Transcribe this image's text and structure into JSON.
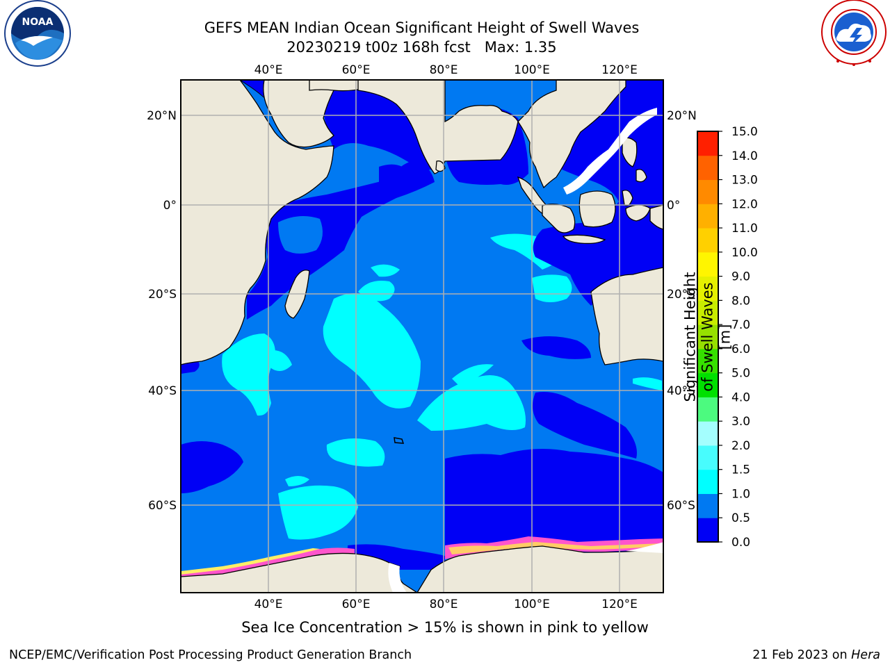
{
  "header": {
    "title_line1": "GEFS MEAN Indian Ocean Significant Height of Swell Waves",
    "title_line2": "20230219 t00z 168h fcst   Max: 1.35"
  },
  "logos": {
    "left": {
      "name": "NOAA",
      "text": "NOAA",
      "ring_text": "NATIONAL OCEANIC AND ATMOSPHERIC ADMINISTRATION · U.S. DEPARTMENT OF COMMERCE"
    },
    "right": {
      "name": "National Weather Service",
      "ring_text": "NATIONAL WEATHER SERVICE"
    }
  },
  "map": {
    "lon_labels": [
      "40°E",
      "60°E",
      "80°E",
      "100°E",
      "120°E"
    ],
    "lat_labels": [
      "20°N",
      "0°",
      "20°S",
      "40°S",
      "60°S"
    ],
    "colors": {
      "land": "#ede9da",
      "coast": "#000000",
      "grid": "#b0b0b0",
      "no_data": "#ffffff"
    }
  },
  "colorbar": {
    "label": "Significant Height of Swell Waves [m]",
    "ticks": [
      "0.0",
      "0.5",
      "1.0",
      "1.5",
      "2.0",
      "3.0",
      "4.0",
      "5.0",
      "6.0",
      "7.0",
      "8.0",
      "9.0",
      "10.0",
      "11.0",
      "12.0",
      "13.0",
      "14.0",
      "15.0"
    ],
    "colors": [
      "#0000f5",
      "#0079f2",
      "#00ffff",
      "#48fcfd",
      "#a4fefe",
      "#4cfa7f",
      "#00e000",
      "#36e000",
      "#96e000",
      "#c8ec00",
      "#e6f000",
      "#fff500",
      "#ffd000",
      "#ffb000",
      "#ff8a00",
      "#ff6200",
      "#ff2000"
    ]
  },
  "caption": "Sea Ice Concentration > 15% is shown in pink to yellow",
  "footer": {
    "left": "NCEP/EMC/Verification Post Processing Product Generation Branch",
    "right_prefix": "21 Feb 2023 on ",
    "right_italic": "Hera"
  }
}
